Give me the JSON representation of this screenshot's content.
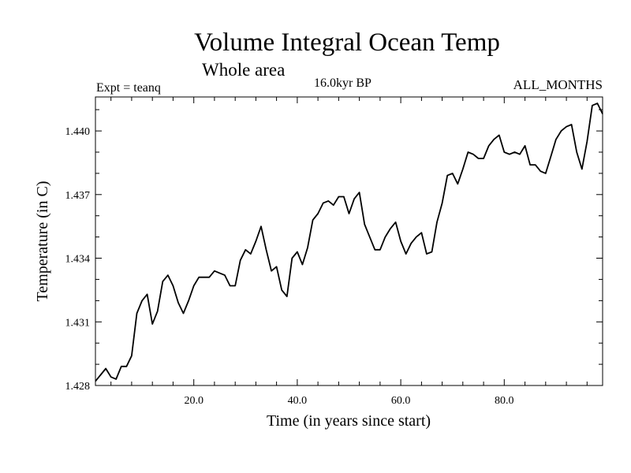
{
  "chart_data": {
    "type": "line",
    "title": "Volume Integral Ocean Temp",
    "subtitle": "Whole area",
    "experiment": "Expt = teanq",
    "period": "16.0kyr BP",
    "months": "ALL_MONTHS",
    "xlabel": "Time (in years since start)",
    "ylabel": "Temperature (in C)",
    "xlim": [
      1,
      99
    ],
    "ylim": [
      1.428,
      1.4416
    ],
    "xticks": [
      20,
      40,
      60,
      80
    ],
    "xtick_labels": [
      "20.0",
      "40.0",
      "60.0",
      "80.0"
    ],
    "yticks": [
      1.428,
      1.431,
      1.434,
      1.437,
      1.44
    ],
    "ytick_labels": [
      "1.428",
      "1.431",
      "1.434",
      "1.437",
      "1.440"
    ],
    "x": [
      1,
      2,
      3,
      4,
      5,
      6,
      7,
      8,
      9,
      10,
      11,
      12,
      13,
      14,
      15,
      16,
      17,
      18,
      19,
      20,
      21,
      22,
      23,
      24,
      25,
      26,
      27,
      28,
      29,
      30,
      31,
      32,
      33,
      34,
      35,
      36,
      37,
      38,
      39,
      40,
      41,
      42,
      43,
      44,
      45,
      46,
      47,
      48,
      49,
      50,
      51,
      52,
      53,
      54,
      55,
      56,
      57,
      58,
      59,
      60,
      61,
      62,
      63,
      64,
      65,
      66,
      67,
      68,
      69,
      70,
      71,
      72,
      73,
      74,
      75,
      76,
      77,
      78,
      79,
      80,
      81,
      82,
      83,
      84,
      85,
      86,
      87,
      88,
      89,
      90,
      91,
      92,
      93,
      94,
      95,
      96,
      97,
      98,
      99
    ],
    "values": [
      1.4282,
      1.4285,
      1.4288,
      1.4284,
      1.4283,
      1.4289,
      1.4289,
      1.4294,
      1.4314,
      1.432,
      1.4323,
      1.4309,
      1.4315,
      1.4329,
      1.4332,
      1.4327,
      1.4319,
      1.4314,
      1.432,
      1.4327,
      1.4331,
      1.4331,
      1.4331,
      1.4334,
      1.4333,
      1.4332,
      1.4327,
      1.4327,
      1.4339,
      1.4344,
      1.4342,
      1.4348,
      1.4355,
      1.4344,
      1.4334,
      1.4336,
      1.4325,
      1.4322,
      1.434,
      1.4343,
      1.4337,
      1.4345,
      1.4358,
      1.4361,
      1.4366,
      1.4367,
      1.4365,
      1.4369,
      1.4369,
      1.4361,
      1.4368,
      1.4371,
      1.4356,
      1.435,
      1.4344,
      1.4344,
      1.435,
      1.4354,
      1.4357,
      1.4348,
      1.4342,
      1.4347,
      1.435,
      1.4352,
      1.4342,
      1.4343,
      1.4357,
      1.4366,
      1.4379,
      1.438,
      1.4375,
      1.4382,
      1.439,
      1.4389,
      1.4387,
      1.4387,
      1.4393,
      1.4396,
      1.4398,
      1.439,
      1.4389,
      1.439,
      1.4389,
      1.4393,
      1.4384,
      1.4384,
      1.4381,
      1.438,
      1.4388,
      1.4396,
      1.44,
      1.4402,
      1.4403,
      1.439,
      1.4382,
      1.4395,
      1.4412,
      1.4413,
      1.4408
    ]
  }
}
